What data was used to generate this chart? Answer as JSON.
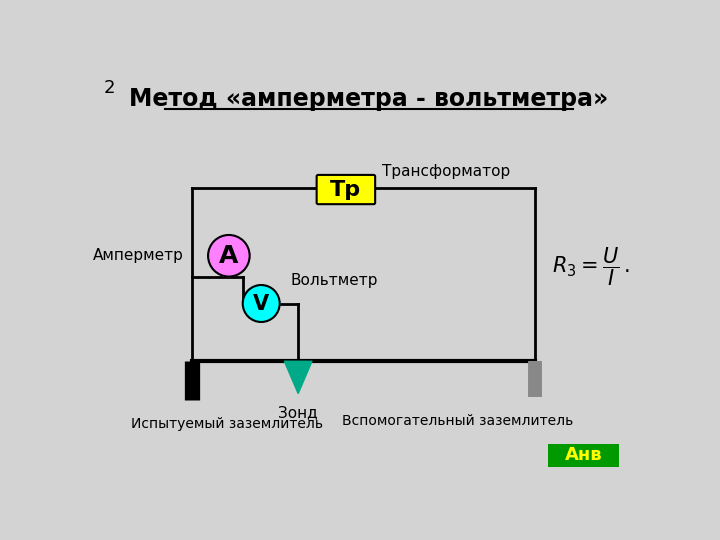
{
  "title": "Метод «амперметра - вольтметра»",
  "page_num": "2",
  "bg_color": "#d3d3d3",
  "transformer_label": "Тр",
  "transformer_box_color": "#ffff00",
  "transformer_annotation": "Трансформатор",
  "ammeter_label": "А",
  "ammeter_color": "#ff80ff",
  "ammeter_annotation": "Амперметр",
  "voltmeter_label": "V",
  "voltmeter_color": "#00ffff",
  "voltmeter_annotation": "Вольтметр",
  "ground_label": "Зонд",
  "probe_color": "#00aa88",
  "earth1_color": "#000000",
  "earth2_color": "#888888",
  "label1": "Испытуемый заземлитель",
  "label2": "Вспомогательный заземлитель",
  "anv_label": "Анв",
  "anv_bg_color": "#009900",
  "anv_text_color": "#ffff00",
  "formula_text": "$R_3 = \\dfrac{U}{I}\\,.$"
}
